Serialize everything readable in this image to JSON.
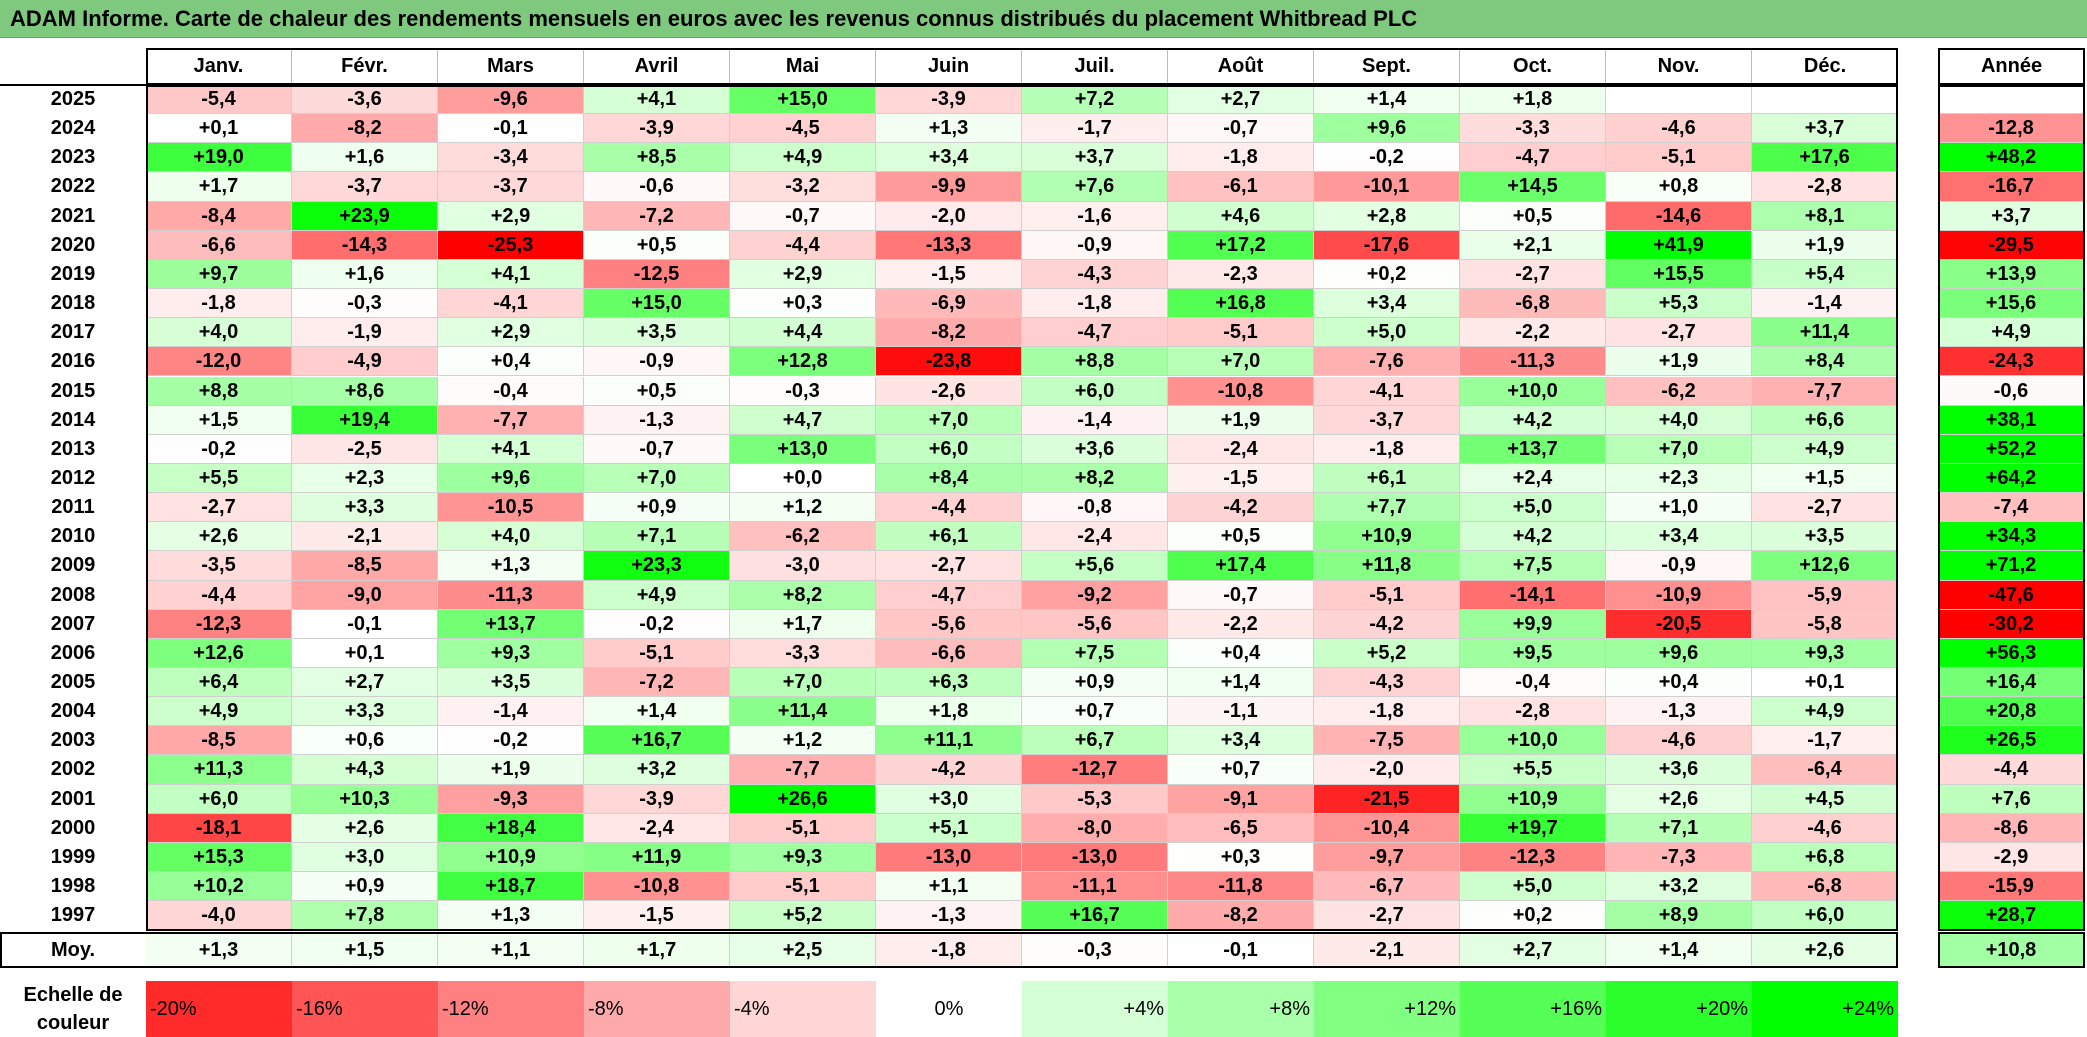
{
  "title": "ADAM Informe. Carte de chaleur des rendements mensuels en euros avec les revenus connus distribués du placement Whitbread PLC",
  "chart_data": {
    "type": "heatmap",
    "months": [
      "Janv.",
      "Févr.",
      "Mars",
      "Avril",
      "Mai",
      "Juin",
      "Juil.",
      "Août",
      "Sept.",
      "Oct.",
      "Nov.",
      "Déc."
    ],
    "year_header": "Année",
    "rows": [
      {
        "label": "2025",
        "values": [
          "-5,4",
          "-3,6",
          "-9,6",
          "+4,1",
          "+15,0",
          "-3,9",
          "+7,2",
          "+2,7",
          "+1,4",
          "+1,8",
          "",
          ""
        ],
        "year": ""
      },
      {
        "label": "2024",
        "values": [
          "+0,1",
          "-8,2",
          "-0,1",
          "-3,9",
          "-4,5",
          "+1,3",
          "-1,7",
          "-0,7",
          "+9,6",
          "-3,3",
          "-4,6",
          "+3,7"
        ],
        "year": "-12,8"
      },
      {
        "label": "2023",
        "values": [
          "+19,0",
          "+1,6",
          "-3,4",
          "+8,5",
          "+4,9",
          "+3,4",
          "+3,7",
          "-1,8",
          "-0,2",
          "-4,7",
          "-5,1",
          "+17,6"
        ],
        "year": "+48,2"
      },
      {
        "label": "2022",
        "values": [
          "+1,7",
          "-3,7",
          "-3,7",
          "-0,6",
          "-3,2",
          "-9,9",
          "+7,6",
          "-6,1",
          "-10,1",
          "+14,5",
          "+0,8",
          "-2,8"
        ],
        "year": "-16,7"
      },
      {
        "label": "2021",
        "values": [
          "-8,4",
          "+23,9",
          "+2,9",
          "-7,2",
          "-0,7",
          "-2,0",
          "-1,6",
          "+4,6",
          "+2,8",
          "+0,5",
          "-14,6",
          "+8,1"
        ],
        "year": "+3,7"
      },
      {
        "label": "2020",
        "values": [
          "-6,6",
          "-14,3",
          "-25,3",
          "+0,5",
          "-4,4",
          "-13,3",
          "-0,9",
          "+17,2",
          "-17,6",
          "+2,1",
          "+41,9",
          "+1,9"
        ],
        "year": "-29,5"
      },
      {
        "label": "2019",
        "values": [
          "+9,7",
          "+1,6",
          "+4,1",
          "-12,5",
          "+2,9",
          "-1,5",
          "-4,3",
          "-2,3",
          "+0,2",
          "-2,7",
          "+15,5",
          "+5,4"
        ],
        "year": "+13,9"
      },
      {
        "label": "2018",
        "values": [
          "-1,8",
          "-0,3",
          "-4,1",
          "+15,0",
          "+0,3",
          "-6,9",
          "-1,8",
          "+16,8",
          "+3,4",
          "-6,8",
          "+5,3",
          "-1,4"
        ],
        "year": "+15,6"
      },
      {
        "label": "2017",
        "values": [
          "+4,0",
          "-1,9",
          "+2,9",
          "+3,5",
          "+4,4",
          "-8,2",
          "-4,7",
          "-5,1",
          "+5,0",
          "-2,2",
          "-2,7",
          "+11,4"
        ],
        "year": "+4,9"
      },
      {
        "label": "2016",
        "values": [
          "-12,0",
          "-4,9",
          "+0,4",
          "-0,9",
          "+12,8",
          "-23,8",
          "+8,8",
          "+7,0",
          "-7,6",
          "-11,3",
          "+1,9",
          "+8,4"
        ],
        "year": "-24,3"
      },
      {
        "label": "2015",
        "values": [
          "+8,8",
          "+8,6",
          "-0,4",
          "+0,5",
          "-0,3",
          "-2,6",
          "+6,0",
          "-10,8",
          "-4,1",
          "+10,0",
          "-6,2",
          "-7,7"
        ],
        "year": "-0,6"
      },
      {
        "label": "2014",
        "values": [
          "+1,5",
          "+19,4",
          "-7,7",
          "-1,3",
          "+4,7",
          "+7,0",
          "-1,4",
          "+1,9",
          "-3,7",
          "+4,2",
          "+4,0",
          "+6,6"
        ],
        "year": "+38,1"
      },
      {
        "label": "2013",
        "values": [
          "-0,2",
          "-2,5",
          "+4,1",
          "-0,7",
          "+13,0",
          "+6,0",
          "+3,6",
          "-2,4",
          "-1,8",
          "+13,7",
          "+7,0",
          "+4,9"
        ],
        "year": "+52,2"
      },
      {
        "label": "2012",
        "values": [
          "+5,5",
          "+2,3",
          "+9,6",
          "+7,0",
          "+0,0",
          "+8,4",
          "+8,2",
          "-1,5",
          "+6,1",
          "+2,4",
          "+2,3",
          "+1,5"
        ],
        "year": "+64,2"
      },
      {
        "label": "2011",
        "values": [
          "-2,7",
          "+3,3",
          "-10,5",
          "+0,9",
          "+1,2",
          "-4,4",
          "-0,8",
          "-4,2",
          "+7,7",
          "+5,0",
          "+1,0",
          "-2,7"
        ],
        "year": "-7,4"
      },
      {
        "label": "2010",
        "values": [
          "+2,6",
          "-2,1",
          "+4,0",
          "+7,1",
          "-6,2",
          "+6,1",
          "-2,4",
          "+0,5",
          "+10,9",
          "+4,2",
          "+3,4",
          "+3,5"
        ],
        "year": "+34,3"
      },
      {
        "label": "2009",
        "values": [
          "-3,5",
          "-8,5",
          "+1,3",
          "+23,3",
          "-3,0",
          "-2,7",
          "+5,6",
          "+17,4",
          "+11,8",
          "+7,5",
          "-0,9",
          "+12,6"
        ],
        "year": "+71,2"
      },
      {
        "label": "2008",
        "values": [
          "-4,4",
          "-9,0",
          "-11,3",
          "+4,9",
          "+8,2",
          "-4,7",
          "-9,2",
          "-0,7",
          "-5,1",
          "-14,1",
          "-10,9",
          "-5,9"
        ],
        "year": "-47,6"
      },
      {
        "label": "2007",
        "values": [
          "-12,3",
          "-0,1",
          "+13,7",
          "-0,2",
          "+1,7",
          "-5,6",
          "-5,6",
          "-2,2",
          "-4,2",
          "+9,9",
          "-20,5",
          "-5,8"
        ],
        "year": "-30,2"
      },
      {
        "label": "2006",
        "values": [
          "+12,6",
          "+0,1",
          "+9,3",
          "-5,1",
          "-3,3",
          "-6,6",
          "+7,5",
          "+0,4",
          "+5,2",
          "+9,5",
          "+9,6",
          "+9,3"
        ],
        "year": "+56,3"
      },
      {
        "label": "2005",
        "values": [
          "+6,4",
          "+2,7",
          "+3,5",
          "-7,2",
          "+7,0",
          "+6,3",
          "+0,9",
          "+1,4",
          "-4,3",
          "-0,4",
          "+0,4",
          "+0,1"
        ],
        "year": "+16,4"
      },
      {
        "label": "2004",
        "values": [
          "+4,9",
          "+3,3",
          "-1,4",
          "+1,4",
          "+11,4",
          "+1,8",
          "+0,7",
          "-1,1",
          "-1,8",
          "-2,8",
          "-1,3",
          "+4,9"
        ],
        "year": "+20,8"
      },
      {
        "label": "2003",
        "values": [
          "-8,5",
          "+0,6",
          "-0,2",
          "+16,7",
          "+1,2",
          "+11,1",
          "+6,7",
          "+3,4",
          "-7,5",
          "+10,0",
          "-4,6",
          "-1,7"
        ],
        "year": "+26,5"
      },
      {
        "label": "2002",
        "values": [
          "+11,3",
          "+4,3",
          "+1,9",
          "+3,2",
          "-7,7",
          "-4,2",
          "-12,7",
          "+0,7",
          "-2,0",
          "+5,5",
          "+3,6",
          "-6,4"
        ],
        "year": "-4,4"
      },
      {
        "label": "2001",
        "values": [
          "+6,0",
          "+10,3",
          "-9,3",
          "-3,9",
          "+26,6",
          "+3,0",
          "-5,3",
          "-9,1",
          "-21,5",
          "+10,9",
          "+2,6",
          "+4,5"
        ],
        "year": "+7,6"
      },
      {
        "label": "2000",
        "values": [
          "-18,1",
          "+2,6",
          "+18,4",
          "-2,4",
          "-5,1",
          "+5,1",
          "-8,0",
          "-6,5",
          "-10,4",
          "+19,7",
          "+7,1",
          "-4,6"
        ],
        "year": "-8,6"
      },
      {
        "label": "1999",
        "values": [
          "+15,3",
          "+3,0",
          "+10,9",
          "+11,9",
          "+9,3",
          "-13,0",
          "-13,0",
          "+0,3",
          "-9,7",
          "-12,3",
          "-7,3",
          "+6,8"
        ],
        "year": "-2,9"
      },
      {
        "label": "1998",
        "values": [
          "+10,2",
          "+0,9",
          "+18,7",
          "-10,8",
          "-5,1",
          "+1,1",
          "-11,1",
          "-11,8",
          "-6,7",
          "+5,0",
          "+3,2",
          "-6,8"
        ],
        "year": "-15,9"
      },
      {
        "label": "1997",
        "values": [
          "-4,0",
          "+7,8",
          "+1,3",
          "-1,5",
          "+5,2",
          "-1,3",
          "+16,7",
          "-8,2",
          "-2,7",
          "+0,2",
          "+8,9",
          "+6,0"
        ],
        "year": "+28,7"
      }
    ],
    "average": {
      "label": "Moy.",
      "values": [
        "+1,3",
        "+1,5",
        "+1,1",
        "+1,7",
        "+2,5",
        "-1,8",
        "-0,3",
        "-0,1",
        "-2,1",
        "+2,7",
        "+1,4",
        "+2,6"
      ],
      "year": "+10,8"
    },
    "legend": {
      "label": "Echelle de couleur",
      "items": [
        {
          "text": "-20%",
          "value": -20,
          "align": "left"
        },
        {
          "text": "-16%",
          "value": -16,
          "align": "left"
        },
        {
          "text": "-12%",
          "value": -12,
          "align": "left"
        },
        {
          "text": "-8%",
          "value": -8,
          "align": "left"
        },
        {
          "text": "-4%",
          "value": -4,
          "align": "left"
        },
        {
          "text": "0%",
          "value": 0,
          "align": "center"
        },
        {
          "text": "+4%",
          "value": 4,
          "align": "right"
        },
        {
          "text": "+8%",
          "value": 8,
          "align": "right"
        },
        {
          "text": "+12%",
          "value": 12,
          "align": "right"
        },
        {
          "text": "+16%",
          "value": 16,
          "align": "right"
        },
        {
          "text": "+20%",
          "value": 20,
          "align": "right"
        },
        {
          "text": "+24%",
          "value": 24,
          "align": "right"
        }
      ]
    },
    "colors": {
      "negative_max": "#ff0000",
      "neutral": "#ffffff",
      "positive_max": "#00ff00"
    }
  }
}
